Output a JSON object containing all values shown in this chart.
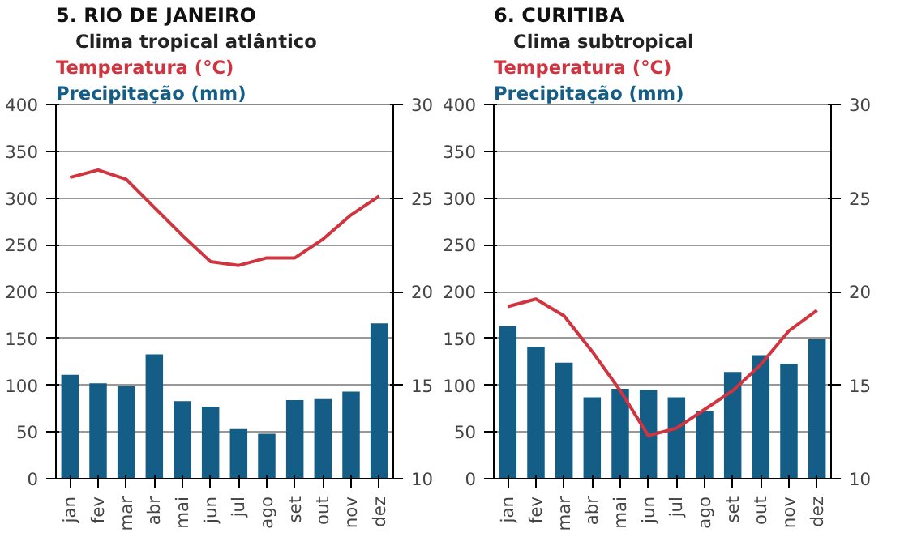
{
  "chart_data": [
    {
      "type": "bar",
      "title": "5. RIO DE JANEIRO",
      "subtitle": "Clima tropical atlântico",
      "categories": [
        "jan",
        "fev",
        "mar",
        "abr",
        "mai",
        "jun",
        "jul",
        "ago",
        "set",
        "out",
        "nov",
        "dez"
      ],
      "series": [
        {
          "name": "Precipitação (mm)",
          "color": "#135d87",
          "values": [
            111,
            102,
            99,
            133,
            83,
            77,
            53,
            48,
            84,
            85,
            93,
            166
          ]
        },
        {
          "name": "Temperatura (°C)",
          "type": "line",
          "axis": "y2",
          "color": "#d0343f",
          "values": [
            26.1,
            26.5,
            26.0,
            24.5,
            23.0,
            21.6,
            21.4,
            21.8,
            21.8,
            22.8,
            24.1,
            25.1
          ]
        }
      ],
      "ylim": [
        0,
        400
      ],
      "yticks": [
        0,
        50,
        100,
        150,
        200,
        250,
        300,
        350,
        400
      ],
      "y2lim": [
        10,
        30
      ],
      "y2ticks": [
        10,
        15,
        20,
        25,
        30
      ],
      "grid": "y",
      "legend": "top left"
    },
    {
      "type": "bar",
      "title": "6. CURITIBA",
      "subtitle": "Clima subtropical",
      "categories": [
        "jan",
        "fev",
        "mar",
        "abr",
        "mai",
        "jun",
        "jul",
        "ago",
        "set",
        "out",
        "nov",
        "dez"
      ],
      "series": [
        {
          "name": "Precipitação (mm)",
          "color": "#135d87",
          "values": [
            163,
            141,
            124,
            87,
            96,
            95,
            87,
            72,
            114,
            132,
            123,
            149
          ]
        },
        {
          "name": "Temperatura (°C)",
          "type": "line",
          "axis": "y2",
          "color": "#d0343f",
          "values": [
            19.2,
            19.6,
            18.7,
            16.8,
            14.7,
            12.3,
            12.7,
            13.7,
            14.7,
            16.1,
            17.9,
            19.0
          ]
        }
      ],
      "ylim": [
        0,
        400
      ],
      "yticks": [
        0,
        50,
        100,
        150,
        200,
        250,
        300,
        350,
        400
      ],
      "y2lim": [
        10,
        30
      ],
      "y2ticks": [
        10,
        15,
        20,
        25,
        30
      ],
      "grid": "y",
      "legend": "top left"
    }
  ]
}
